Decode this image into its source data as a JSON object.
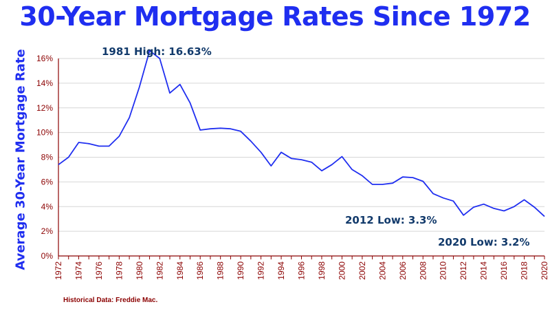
{
  "chart_data": {
    "type": "line",
    "title": "30-Year Mortgage Rates Since 1972",
    "ylabel": "Average 30-Year Mortgage Rate",
    "xlabel": "",
    "source": "Historical Data: Freddie Mac.",
    "ylim": [
      0,
      16
    ],
    "xlim": [
      1972,
      2020
    ],
    "yticks": [
      "0%",
      "2%",
      "4%",
      "6%",
      "8%",
      "10%",
      "12%",
      "14%",
      "16%"
    ],
    "ytick_values": [
      0,
      2,
      4,
      6,
      8,
      10,
      12,
      14,
      16
    ],
    "xticks": [
      "1972",
      "1974",
      "1976",
      "1978",
      "1980",
      "1982",
      "1984",
      "1986",
      "1988",
      "1990",
      "1992",
      "1994",
      "1996",
      "1998",
      "2000",
      "2002",
      "2004",
      "2006",
      "2008",
      "2010",
      "2012",
      "2014",
      "2016",
      "2018",
      "2020"
    ],
    "grid": true,
    "line_color": "#1f2ef0",
    "series": [
      {
        "x": [
          1972,
          1973,
          1974,
          1975,
          1976,
          1977,
          1978,
          1979,
          1980,
          1981,
          1982,
          1983,
          1984,
          1985,
          1986,
          1987,
          1988,
          1989,
          1990,
          1991,
          1992,
          1993,
          1994,
          1995,
          1996,
          1997,
          1998,
          1999,
          2000,
          2001,
          2002,
          2003,
          2004,
          2005,
          2006,
          2007,
          2008,
          2009,
          2010,
          2011,
          2012,
          2013,
          2014,
          2015,
          2016,
          2017,
          2018,
          2019,
          2020
        ],
        "values": [
          7.4,
          8.0,
          9.2,
          9.1,
          8.9,
          8.9,
          9.7,
          11.2,
          13.7,
          16.63,
          16.0,
          13.2,
          13.9,
          12.4,
          10.2,
          10.3,
          10.35,
          10.3,
          10.1,
          9.3,
          8.4,
          7.3,
          8.4,
          7.9,
          7.8,
          7.6,
          6.9,
          7.4,
          8.05,
          7.0,
          6.5,
          5.8,
          5.8,
          5.9,
          6.4,
          6.35,
          6.05,
          5.05,
          4.7,
          4.45,
          3.3,
          3.95,
          4.2,
          3.85,
          3.65,
          4.0,
          4.55,
          3.95,
          3.2
        ]
      }
    ],
    "annotations": [
      {
        "text": "1981 High: 16.63%",
        "x": 1981,
        "y": 16.63
      },
      {
        "text": "2012 Low: 3.3%",
        "x": 2012,
        "y": 3.3
      },
      {
        "text": "2020 Low: 3.2%",
        "x": 2020,
        "y": 3.2
      }
    ]
  }
}
